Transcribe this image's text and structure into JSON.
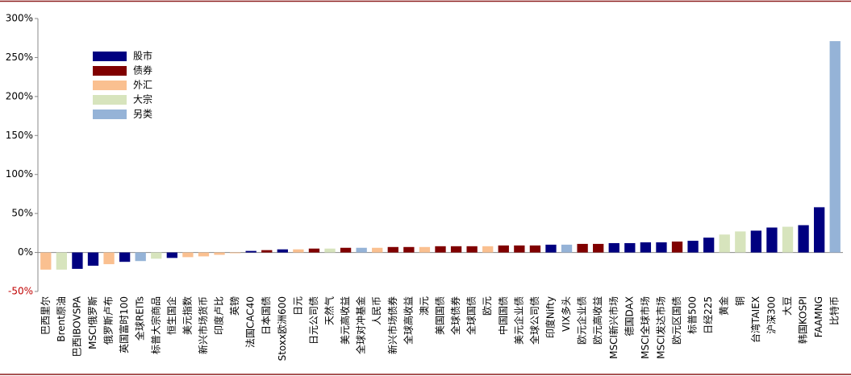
{
  "chart_data": {
    "type": "bar",
    "categories": [
      "巴西里尔",
      "Brent原油",
      "巴西IBOVSPA",
      "MSCI俄罗斯",
      "俄罗斯卢布",
      "英国富时100",
      "全球REITs",
      "标普大宗商品",
      "恒生国企",
      "美元指数",
      "新兴市场货币",
      "印度卢比",
      "英镑",
      "法国CAC40",
      "日本国债",
      "Stoxx欧洲600",
      "日元",
      "日元公司债",
      "天然气",
      "美元高收益",
      "全球对冲基金",
      "人民币",
      "新兴市场债券",
      "全球高收益",
      "澳元",
      "美国国债",
      "全球债券",
      "全球国债",
      "欧元",
      "中国国债",
      "美元企业债",
      "全球公司债",
      "印度Nifty",
      "VIX多头",
      "欧元企业债",
      "欧元高收益",
      "MSCI新兴市场",
      "德国DAX",
      "MSCI全球市场",
      "MSCI发达市场",
      "欧元区国债",
      "标普500",
      "日经225",
      "黄金",
      "铜",
      "台湾TAIEX",
      "沪深300",
      "大豆",
      "韩国KOSPI",
      "FAAMNG",
      "比特币"
    ],
    "values": [
      -22,
      -22,
      -21,
      -17,
      -15,
      -12,
      -11,
      -8,
      -7,
      -6,
      -5,
      -3,
      -1,
      2,
      3,
      4,
      4,
      5,
      5,
      6,
      6,
      6,
      7,
      7,
      7,
      8,
      8,
      8,
      8,
      9,
      9,
      9,
      10,
      10,
      11,
      11,
      12,
      12,
      13,
      13,
      14,
      15,
      19,
      23,
      27,
      28,
      32,
      33,
      35,
      58,
      271
    ],
    "bar_colors": [
      "#fac090",
      "#d7e4bd",
      "#000080",
      "#000080",
      "#fac090",
      "#000080",
      "#95b3d7",
      "#d7e4bd",
      "#000080",
      "#fac090",
      "#fac090",
      "#fac090",
      "#fac090",
      "#000080",
      "#800000",
      "#000080",
      "#fac090",
      "#800000",
      "#d7e4bd",
      "#800000",
      "#95b3d7",
      "#fac090",
      "#800000",
      "#800000",
      "#fac090",
      "#800000",
      "#800000",
      "#800000",
      "#fac090",
      "#800000",
      "#800000",
      "#800000",
      "#000080",
      "#95b3d7",
      "#800000",
      "#800000",
      "#000080",
      "#000080",
      "#000080",
      "#000080",
      "#800000",
      "#000080",
      "#000080",
      "#d7e4bd",
      "#d7e4bd",
      "#000080",
      "#000080",
      "#d7e4bd",
      "#000080",
      "#000080",
      "#95b3d7"
    ],
    "legend": [
      {
        "name": "股市",
        "color": "#000080"
      },
      {
        "name": "债券",
        "color": "#800000"
      },
      {
        "name": "外汇",
        "color": "#fac090"
      },
      {
        "name": "大宗",
        "color": "#d7e4bd"
      },
      {
        "name": "另类",
        "color": "#95b3d7"
      }
    ],
    "ylim": [
      -50,
      300
    ],
    "yticks": [
      {
        "value": -50,
        "label": "-50%"
      },
      {
        "value": 0,
        "label": "0%"
      },
      {
        "value": 50,
        "label": "50%"
      },
      {
        "value": 100,
        "label": "100%"
      },
      {
        "value": 150,
        "label": "150%"
      },
      {
        "value": 200,
        "label": "200%"
      },
      {
        "value": 250,
        "label": "250%"
      },
      {
        "value": 300,
        "label": "300%"
      }
    ]
  }
}
